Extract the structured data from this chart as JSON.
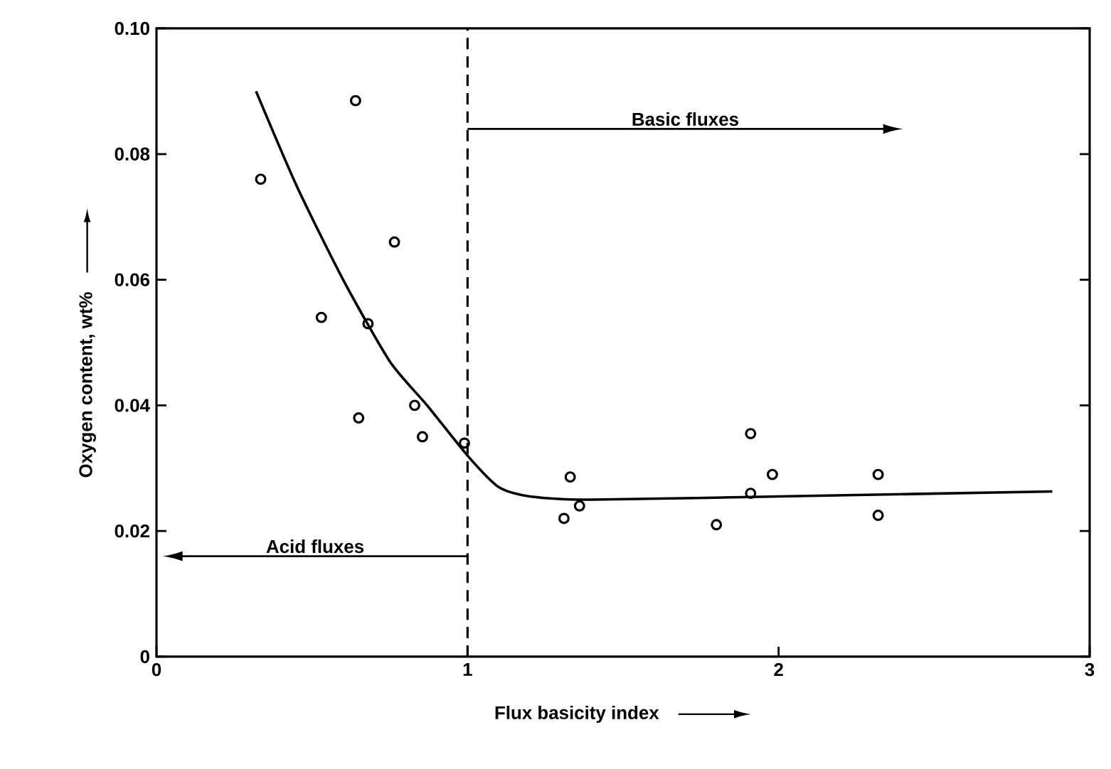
{
  "chart_data": {
    "type": "scatter",
    "xlabel": "Flux basicity index",
    "ylabel": "Oxygen content, wt%",
    "marker": "circle",
    "xlim": [
      0,
      3
    ],
    "ylim": [
      0,
      0.1
    ],
    "xticks": [
      0,
      1,
      2,
      3
    ],
    "yticks": [
      0,
      0.02,
      0.04,
      0.06,
      0.08,
      {
        "value": 0.1,
        "label": "0.10"
      }
    ],
    "series": [
      {
        "color": "#000000",
        "x": [
          0.335,
          0.64,
          0.765,
          0.53,
          0.68,
          0.65,
          0.83,
          0.855,
          0.99,
          1.33,
          1.36,
          1.31,
          1.8,
          1.91,
          1.91,
          1.98,
          2.32,
          2.32
        ],
        "values": [
          0.076,
          0.0885,
          0.066,
          0.054,
          0.053,
          0.038,
          0.04,
          0.035,
          0.034,
          0.0286,
          0.024,
          0.022,
          0.021,
          0.0355,
          0.026,
          0.029,
          0.029,
          0.0225
        ]
      },
      {
        "type": "line",
        "color": "#000000",
        "marker": "none",
        "x": [
          0.32,
          0.45,
          0.6,
          0.75,
          0.87,
          1.0,
          1.1,
          1.2,
          1.4,
          2.0,
          2.88
        ],
        "values": [
          0.09,
          0.075,
          0.06,
          0.047,
          0.04,
          0.032,
          0.027,
          0.0255,
          0.025,
          0.0255,
          0.0263
        ]
      }
    ],
    "ref_lines": [
      {
        "axis": "x",
        "value": 1,
        "line_style": "dashed"
      }
    ],
    "annotations": [
      "Basic fluxes",
      "Acid fluxes"
    ]
  }
}
